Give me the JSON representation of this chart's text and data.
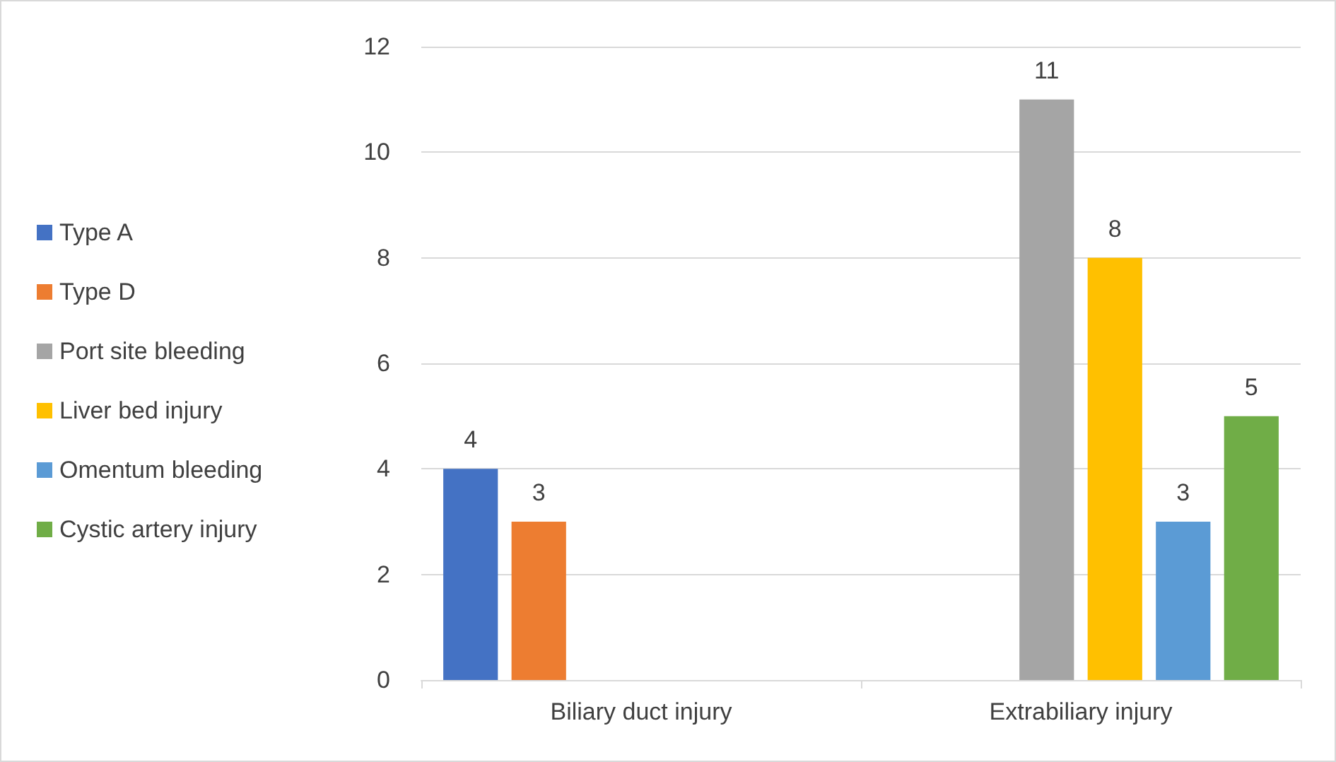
{
  "chart_data": {
    "type": "bar",
    "categories": [
      "Biliary duct injury",
      "Extrabiliary injury"
    ],
    "series": [
      {
        "name": "Type A",
        "color": "#4472c4",
        "values": [
          4,
          null
        ]
      },
      {
        "name": "Type D",
        "color": "#ed7d31",
        "values": [
          3,
          null
        ]
      },
      {
        "name": "Port site bleeding",
        "color": "#a5a5a5",
        "values": [
          null,
          11
        ]
      },
      {
        "name": "Liver bed injury",
        "color": "#ffc000",
        "values": [
          null,
          8
        ]
      },
      {
        "name": "Omentum bleeding",
        "color": "#5b9bd5",
        "values": [
          null,
          3
        ]
      },
      {
        "name": "Cystic artery injury",
        "color": "#70ad47",
        "values": [
          null,
          5
        ]
      }
    ],
    "ylim": [
      0,
      12
    ],
    "yticks": [
      0,
      2,
      4,
      6,
      8,
      10,
      12
    ],
    "grid": "y",
    "legend": "left",
    "data_labels": true
  }
}
